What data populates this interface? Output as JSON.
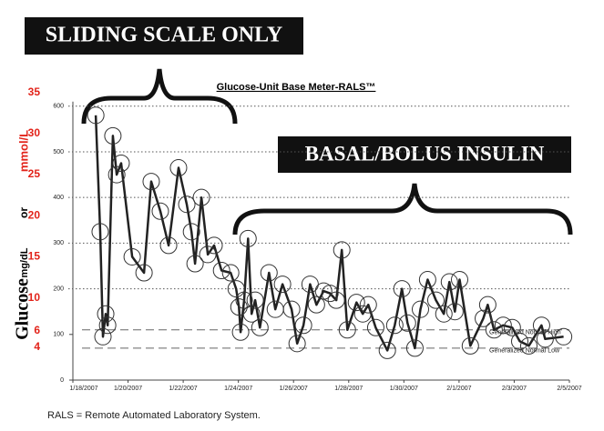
{
  "chart_data": {
    "type": "line",
    "title": "Glucose-Unit Base Meter-RALS™",
    "annotations": [
      "SLIDING SCALE ONLY",
      "BASAL/BOLUS INSULIN"
    ],
    "y_axis_label_parts": [
      "Glucose",
      "mg/dL",
      "or",
      "mmol/L"
    ],
    "footnote": "RALS = Remote Automated Laboratory System.",
    "xlim": [
      0,
      18
    ],
    "xticks": [
      {
        "value": 0,
        "label": "1/18/2007"
      },
      {
        "value": 2,
        "label": "1/20/2007"
      },
      {
        "value": 4,
        "label": "1/22/2007"
      },
      {
        "value": 6,
        "label": "1/24/2007"
      },
      {
        "value": 8,
        "label": "1/26/2007"
      },
      {
        "value": 10,
        "label": "1/28/2007"
      },
      {
        "value": 12,
        "label": "1/30/2007"
      },
      {
        "value": 14,
        "label": "2/1/2007"
      },
      {
        "value": 16,
        "label": "2/3/2007"
      },
      {
        "value": 18,
        "label": "2/5/2007"
      }
    ],
    "ylim": [
      0,
      630
    ],
    "yticks": [
      0,
      100,
      200,
      300,
      400,
      500,
      600
    ],
    "y2lim": [
      0,
      35
    ],
    "y2ticks": [
      4,
      6,
      10,
      15,
      20,
      25,
      30,
      35
    ],
    "grid": true,
    "reference_lines": [
      {
        "label": "Generalized Normal High",
        "value": 110
      },
      {
        "label": "Generalized Normal Low",
        "value": 70
      }
    ],
    "series": [
      {
        "color": "#222222",
        "x": [
          0.83,
          0.99,
          1.09,
          1.19,
          1.26,
          1.45,
          1.59,
          1.75,
          2.15,
          2.58,
          2.84,
          3.17,
          3.47,
          3.83,
          4.13,
          4.3,
          4.43,
          4.66,
          4.89,
          5.12,
          5.39,
          5.72,
          5.92,
          6.02,
          6.08,
          6.21,
          6.35,
          6.48,
          6.61,
          6.78,
          7.11,
          7.34,
          7.6,
          7.93,
          8.13,
          8.36,
          8.6,
          8.83,
          9.09,
          9.32,
          9.55,
          9.75,
          9.95,
          10.28,
          10.51,
          10.71,
          10.98,
          11.4,
          11.67,
          11.93,
          12.13,
          12.4,
          12.6,
          12.86,
          13.16,
          13.45,
          13.65,
          13.85,
          14.02,
          14.41,
          14.88,
          15.04,
          15.27,
          15.6,
          15.93,
          16.2,
          16.53,
          16.99,
          17.12,
          17.79
        ],
        "values": [
          580,
          325,
          95,
          145,
          120,
          535,
          450,
          475,
          270,
          235,
          435,
          370,
          295,
          465,
          385,
          325,
          255,
          400,
          275,
          295,
          240,
          235,
          200,
          160,
          105,
          175,
          310,
          145,
          175,
          115,
          235,
          155,
          210,
          155,
          80,
          120,
          210,
          165,
          195,
          190,
          175,
          285,
          110,
          170,
          145,
          165,
          115,
          65,
          120,
          200,
          125,
          70,
          155,
          220,
          175,
          145,
          215,
          150,
          220,
          75,
          135,
          165,
          110,
          120,
          115,
          85,
          75,
          120,
          90,
          95
        ]
      }
    ]
  }
}
